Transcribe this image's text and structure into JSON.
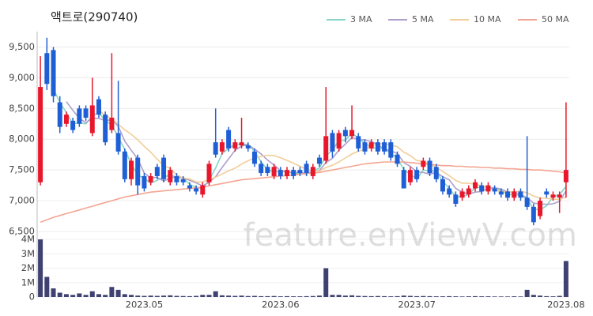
{
  "chart_data": [
    {
      "type": "candlestick",
      "title": "액트로(290740)",
      "up_color": "#e8172c",
      "down_color": "#1f5fd6",
      "ylim": [
        6500,
        9750
      ],
      "yticks": [
        {
          "value": 6500,
          "label": "6,500"
        },
        {
          "value": 7000,
          "label": "7,000"
        },
        {
          "value": 7500,
          "label": "7,500"
        },
        {
          "value": 8000,
          "label": "8,000"
        },
        {
          "value": 8500,
          "label": "8,500"
        },
        {
          "value": 9000,
          "label": "9,000"
        },
        {
          "value": 9500,
          "label": "9,500"
        }
      ],
      "grid": true,
      "open": [
        7300,
        9400,
        9450,
        8600,
        8250,
        8300,
        8500,
        8500,
        8100,
        8650,
        8400,
        8150,
        8100,
        7800,
        7350,
        7700,
        7400,
        7300,
        7550,
        7700,
        7300,
        7400,
        7350,
        7250,
        7200,
        7100,
        7300,
        7950,
        7800,
        8150,
        7850,
        7900,
        7900,
        7800,
        7600,
        7550,
        7400,
        7500,
        7400,
        7500,
        7500,
        7600,
        7400,
        7700,
        7650,
        8100,
        7850,
        8150,
        8050,
        8050,
        7950,
        7850,
        7950,
        7950,
        7950,
        7750,
        7500,
        7300,
        7500,
        7550,
        7650,
        7550,
        7350,
        7200,
        7100,
        7050,
        7100,
        7200,
        7250,
        7150,
        7200,
        7150,
        7150,
        7050,
        7150,
        7050,
        6900,
        6750,
        7150,
        7050,
        7050,
        7300
      ],
      "high": [
        9350,
        9650,
        9500,
        8700,
        8450,
        8350,
        8550,
        8550,
        9000,
        8700,
        8450,
        9400,
        8950,
        7850,
        7700,
        7750,
        7450,
        7450,
        7600,
        7750,
        7550,
        7450,
        7400,
        7300,
        7250,
        7300,
        7650,
        8500,
        8000,
        8200,
        8000,
        8350,
        7950,
        7850,
        7650,
        7600,
        7600,
        7550,
        7550,
        7550,
        7550,
        7650,
        7600,
        7750,
        8850,
        8150,
        8150,
        8200,
        8550,
        8100,
        8000,
        8000,
        8000,
        8000,
        8000,
        7800,
        7550,
        7550,
        7550,
        7700,
        7700,
        7600,
        7400,
        7250,
        7150,
        7200,
        7250,
        7350,
        7300,
        7300,
        7250,
        7200,
        7200,
        7200,
        7200,
        8050,
        6950,
        7050,
        7200,
        7150,
        7150,
        8600
      ],
      "low": [
        7250,
        8800,
        8600,
        8100,
        8200,
        8100,
        8200,
        8300,
        8050,
        8350,
        7900,
        8100,
        7750,
        7300,
        7250,
        7100,
        7150,
        7250,
        7350,
        7300,
        7250,
        7250,
        7250,
        7150,
        7100,
        7050,
        7250,
        7700,
        7750,
        7800,
        7800,
        7850,
        7800,
        7550,
        7400,
        7400,
        7350,
        7350,
        7350,
        7350,
        7400,
        7400,
        7350,
        7550,
        7600,
        7700,
        7800,
        7950,
        8000,
        7800,
        7750,
        7800,
        7750,
        7750,
        7650,
        7550,
        7200,
        7250,
        7300,
        7500,
        7400,
        7300,
        7100,
        7050,
        6900,
        7000,
        7050,
        7150,
        7100,
        7100,
        7100,
        7050,
        7000,
        7000,
        7000,
        6850,
        6600,
        6700,
        7050,
        7000,
        6800,
        7050
      ],
      "close": [
        8850,
        8900,
        8700,
        8200,
        8400,
        8150,
        8250,
        8350,
        8550,
        8400,
        7950,
        8350,
        7800,
        7350,
        7650,
        7250,
        7200,
        7400,
        7400,
        7350,
        7500,
        7300,
        7300,
        7200,
        7150,
        7250,
        7600,
        7750,
        7950,
        7850,
        7950,
        7950,
        7850,
        7600,
        7450,
        7450,
        7550,
        7400,
        7500,
        7400,
        7450,
        7450,
        7550,
        7600,
        8050,
        7800,
        8100,
        8050,
        8150,
        7850,
        7800,
        7950,
        7800,
        7800,
        7700,
        7600,
        7200,
        7500,
        7350,
        7650,
        7450,
        7350,
        7150,
        7100,
        6950,
        7150,
        7200,
        7300,
        7150,
        7250,
        7150,
        7100,
        7050,
        7150,
        7050,
        6900,
        6650,
        7000,
        7100,
        7100,
        7100,
        7500
      ],
      "series": [
        {
          "name": "3 MA",
          "color": "#86d6c6",
          "values": [
            null,
            null,
            8817,
            8600,
            8433,
            8250,
            8267,
            8250,
            8383,
            8433,
            8300,
            8233,
            8033,
            7833,
            7600,
            7417,
            7367,
            7283,
            7333,
            7383,
            7417,
            7383,
            7367,
            7267,
            7217,
            7200,
            7333,
            7533,
            7767,
            7850,
            7917,
            7917,
            7917,
            7800,
            7633,
            7500,
            7483,
            7467,
            7483,
            7433,
            7450,
            7433,
            7483,
            7533,
            7733,
            7817,
            7983,
            7983,
            8100,
            8017,
            7933,
            7867,
            7850,
            7850,
            7767,
            7700,
            7500,
            7433,
            7350,
            7500,
            7483,
            7483,
            7317,
            7200,
            7067,
            7067,
            7100,
            7217,
            7217,
            7233,
            7183,
            7167,
            7100,
            7100,
            7083,
            7033,
            6867,
            6850,
            6917,
            7067,
            7100,
            7233
          ]
        },
        {
          "name": "5 MA",
          "color": "#ad9fcc",
          "values": [
            null,
            null,
            null,
            null,
            8610,
            8470,
            8340,
            8270,
            8340,
            8340,
            8300,
            8320,
            8210,
            7970,
            7820,
            7680,
            7450,
            7370,
            7380,
            7320,
            7370,
            7390,
            7370,
            7330,
            7290,
            7240,
            7300,
            7390,
            7540,
            7680,
            7820,
            7890,
            7910,
            7840,
            7760,
            7660,
            7580,
            7490,
            7470,
            7460,
            7460,
            7440,
            7470,
            7490,
            7620,
            7690,
            7820,
            7920,
            8030,
            7990,
            7990,
            7960,
            7910,
            7840,
            7810,
            7770,
            7620,
            7560,
            7470,
            7460,
            7430,
            7460,
            7390,
            7340,
            7200,
            7140,
            7110,
            7140,
            7150,
            7210,
            7210,
            7190,
            7140,
            7140,
            7100,
            7050,
            6960,
            6950,
            6940,
            6950,
            6990,
            7160
          ]
        },
        {
          "name": "10 MA",
          "color": "#f2cd98",
          "values": [
            null,
            null,
            null,
            null,
            null,
            null,
            null,
            null,
            null,
            8475,
            8385,
            8330,
            8240,
            8155,
            8080,
            7990,
            7885,
            7790,
            7675,
            7570,
            7525,
            7420,
            7370,
            7355,
            7305,
            7305,
            7345,
            7380,
            7435,
            7485,
            7530,
            7595,
            7650,
            7690,
            7720,
            7740,
            7735,
            7700,
            7655,
            7610,
            7560,
            7510,
            7480,
            7480,
            7540,
            7575,
            7630,
            7695,
            7760,
            7805,
            7840,
            7890,
            7915,
            7935,
            7900,
            7880,
            7790,
            7735,
            7655,
            7635,
            7600,
            7540,
            7475,
            7405,
            7330,
            7285,
            7285,
            7265,
            7245,
            7205,
            7175,
            7150,
            7140,
            7145,
            7155,
            7130,
            7075,
            7045,
            7040,
            7025,
            7020,
            7060
          ]
        },
        {
          "name": "50 MA",
          "color": "#f4a592",
          "values": [
            6650,
            6690,
            6730,
            6760,
            6790,
            6820,
            6850,
            6880,
            6910,
            6940,
            6970,
            7000,
            7030,
            7060,
            7080,
            7100,
            7120,
            7140,
            7150,
            7160,
            7170,
            7180,
            7190,
            7200,
            7210,
            7220,
            7240,
            7260,
            7280,
            7300,
            7320,
            7340,
            7350,
            7360,
            7370,
            7380,
            7390,
            7400,
            7410,
            7420,
            7430,
            7440,
            7450,
            7460,
            7480,
            7500,
            7520,
            7540,
            7560,
            7580,
            7600,
            7610,
            7620,
            7630,
            7630,
            7630,
            7630,
            7620,
            7610,
            7600,
            7590,
            7580,
            7570,
            7570,
            7560,
            7560,
            7550,
            7550,
            7540,
            7540,
            7530,
            7530,
            7520,
            7520,
            7510,
            7510,
            7500,
            7500,
            7490,
            7480,
            7470,
            7450
          ]
        }
      ],
      "watermark": "feature.enViewV.com"
    },
    {
      "type": "bar",
      "color": "#3f4170",
      "ylim": [
        0,
        4000000
      ],
      "yticks": [
        0,
        {
          "value": 1000000,
          "label": "1M"
        },
        {
          "value": 2000000,
          "label": "2M"
        },
        {
          "value": 3000000,
          "label": "3M"
        },
        {
          "value": 4000000,
          "label": "4M"
        }
      ],
      "categories": [
        null,
        null,
        null,
        null,
        null,
        null,
        null,
        null,
        null,
        null,
        null,
        null,
        null,
        null,
        null,
        null,
        "2023.05",
        null,
        null,
        null,
        null,
        null,
        null,
        null,
        null,
        null,
        null,
        null,
        null,
        null,
        null,
        null,
        null,
        null,
        null,
        null,
        null,
        "2023.06",
        null,
        null,
        null,
        null,
        null,
        null,
        null,
        null,
        null,
        null,
        null,
        null,
        null,
        null,
        null,
        null,
        null,
        null,
        null,
        null,
        "2023.07",
        null,
        null,
        null,
        null,
        null,
        null,
        null,
        null,
        null,
        null,
        null,
        null,
        null,
        null,
        null,
        null,
        null,
        null,
        null,
        null,
        null,
        null,
        "2023.08"
      ],
      "values": [
        4000000,
        1400000,
        600000,
        300000,
        200000,
        150000,
        250000,
        150000,
        400000,
        200000,
        150000,
        700000,
        500000,
        200000,
        150000,
        100000,
        80000,
        100000,
        80000,
        100000,
        120000,
        80000,
        70000,
        60000,
        80000,
        150000,
        150000,
        400000,
        120000,
        100000,
        80000,
        100000,
        70000,
        80000,
        60000,
        60000,
        70000,
        50000,
        60000,
        50000,
        50000,
        60000,
        70000,
        100000,
        2000000,
        150000,
        150000,
        100000,
        120000,
        80000,
        70000,
        60000,
        70000,
        60000,
        50000,
        60000,
        100000,
        80000,
        60000,
        70000,
        60000,
        50000,
        50000,
        60000,
        50000,
        40000,
        50000,
        60000,
        50000,
        50000,
        40000,
        40000,
        40000,
        50000,
        40000,
        500000,
        150000,
        100000,
        60000,
        50000,
        80000,
        2500000
      ]
    }
  ]
}
